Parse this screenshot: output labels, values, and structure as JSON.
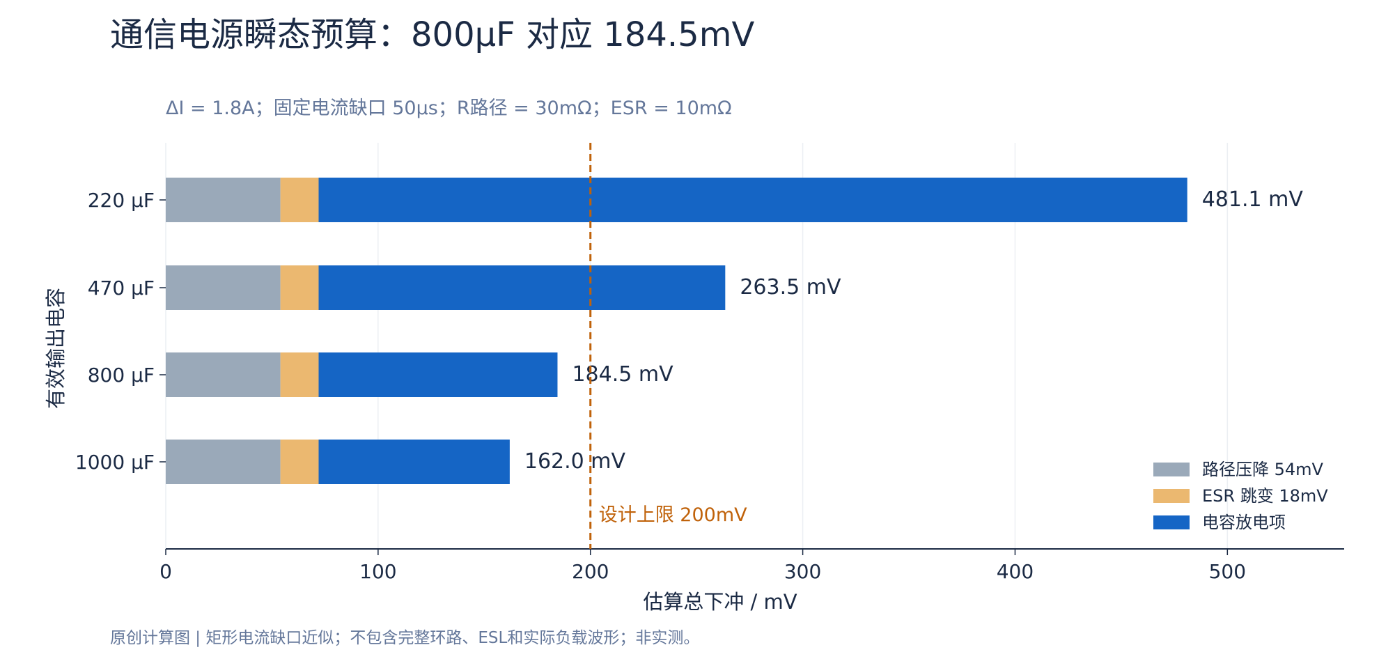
{
  "title": "通信电源瞬态预算：800μF 对应 184.5mV",
  "subtitle": "ΔI = 1.8A；固定电流缺口 50μs；R路径 = 30mΩ；ESR = 10mΩ",
  "footnote": "原创计算图 | 矩形电流缺口近似；不包含完整环路、ESL和实际负载波形；非实测。",
  "colors": {
    "path": "#9aa9b9",
    "esr": "#ebb870",
    "cap": "#1565c5",
    "limit": "#c0620a",
    "grid": "#eceff3",
    "axis": "#1b2a44"
  },
  "chart_data": {
    "type": "bar",
    "orientation": "horizontal",
    "stacked": true,
    "categories": [
      "220 μF",
      "470 μF",
      "800 μF",
      "1000 μF"
    ],
    "series": [
      {
        "name": "路径压降 54mV",
        "values": [
          54,
          54,
          54,
          54
        ]
      },
      {
        "name": "ESR 跳变 18mV",
        "values": [
          18,
          18,
          18,
          18
        ]
      },
      {
        "name": "电容放电项",
        "values": [
          409.1,
          191.5,
          112.5,
          90.0
        ]
      }
    ],
    "totals": [
      481.1,
      263.5,
      184.5,
      162.0
    ],
    "total_labels": [
      "481.1 mV",
      "263.5 mV",
      "184.5 mV",
      "162.0 mV"
    ],
    "xlabel": "估算总下冲 / mV",
    "ylabel": "有效输出电容",
    "xlim": [
      0,
      555
    ],
    "xticks": [
      0,
      100,
      200,
      300,
      400,
      500
    ],
    "reference_line": {
      "value": 200,
      "label": "设计上限 200mV"
    },
    "legend_position": "bottom-right",
    "grid": "vertical"
  }
}
